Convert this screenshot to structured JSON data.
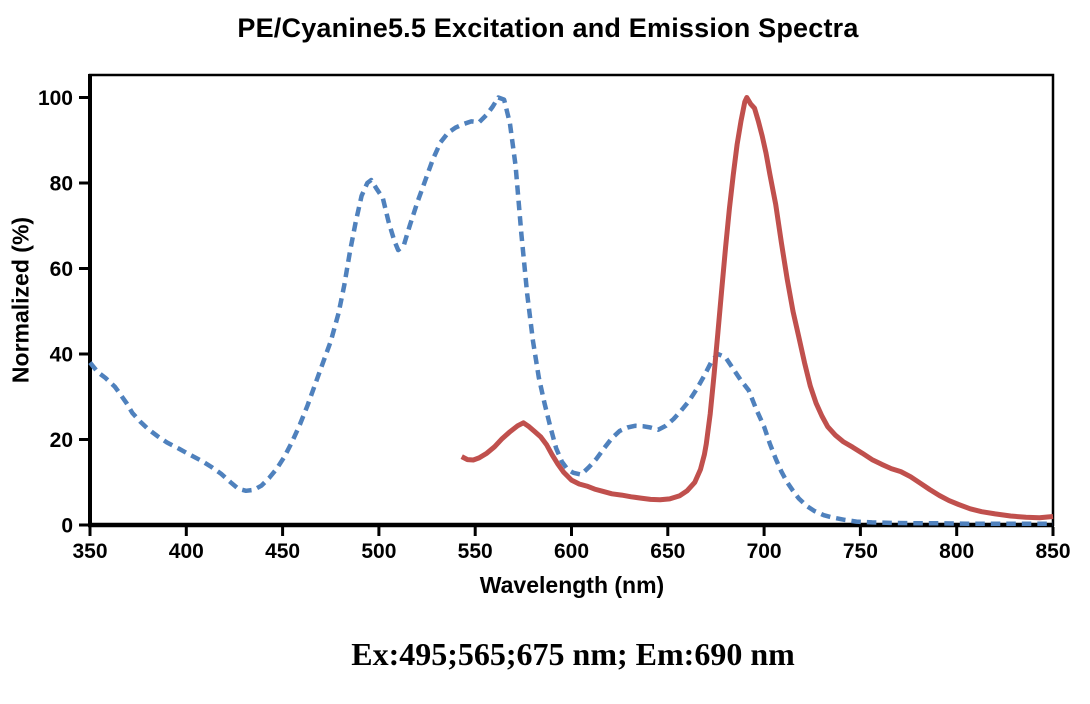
{
  "title": "PE/Cyanine5.5 Excitation and Emission Spectra",
  "annotation": "Ex:495;565;675 nm; Em:690 nm",
  "colors": {
    "excitation": "#4f81bd",
    "emission": "#c0504d",
    "axis": "#000000",
    "background": "#ffffff"
  },
  "chart_data": {
    "type": "line",
    "title": "PE/Cyanine5.5 Excitation and Emission Spectra",
    "xlabel": "Wavelength (nm)",
    "ylabel": "Normalized (%)",
    "xlim": [
      350,
      850
    ],
    "ylim": [
      0,
      100
    ],
    "x_ticks": [
      350,
      400,
      450,
      500,
      550,
      600,
      650,
      700,
      750,
      800,
      850
    ],
    "y_ticks": [
      0,
      20,
      40,
      60,
      80,
      100
    ],
    "grid": false,
    "legend_position": "none",
    "plot_border": true,
    "series": [
      {
        "name": "Excitation",
        "line_style": "dashed",
        "color": "#4f81bd",
        "points": [
          [
            350,
            38
          ],
          [
            354,
            35.8
          ],
          [
            358,
            34.4
          ],
          [
            363,
            32.3
          ],
          [
            366,
            30.4
          ],
          [
            369,
            28.5
          ],
          [
            372,
            26.2
          ],
          [
            376,
            24.2
          ],
          [
            380,
            22.5
          ],
          [
            385,
            20.8
          ],
          [
            390,
            19.3
          ],
          [
            396,
            17.9
          ],
          [
            402,
            16.4
          ],
          [
            408,
            15.0
          ],
          [
            413,
            13.6
          ],
          [
            418,
            12.0
          ],
          [
            423,
            10.0
          ],
          [
            427,
            8.5
          ],
          [
            431,
            8.0
          ],
          [
            435,
            8.2
          ],
          [
            439,
            9.2
          ],
          [
            443,
            11.0
          ],
          [
            447,
            13.2
          ],
          [
            451,
            16.0
          ],
          [
            455,
            19.5
          ],
          [
            459,
            23.5
          ],
          [
            463,
            28.0
          ],
          [
            467,
            33.0
          ],
          [
            471,
            38.0
          ],
          [
            475,
            43.0
          ],
          [
            479,
            49.5
          ],
          [
            482,
            56.0
          ],
          [
            485,
            64.0
          ],
          [
            488,
            71.0
          ],
          [
            491,
            77.0
          ],
          [
            494,
            80.0
          ],
          [
            496,
            80.7
          ],
          [
            499,
            78.5
          ],
          [
            502,
            76.5
          ],
          [
            505,
            71.0
          ],
          [
            508,
            66.5
          ],
          [
            510,
            64.3
          ],
          [
            513,
            65.5
          ],
          [
            516,
            70.0
          ],
          [
            520,
            75.5
          ],
          [
            524,
            80.5
          ],
          [
            528,
            85.5
          ],
          [
            532,
            89.5
          ],
          [
            536,
            91.8
          ],
          [
            540,
            93.0
          ],
          [
            544,
            93.8
          ],
          [
            548,
            94.4
          ],
          [
            552,
            94.2
          ],
          [
            556,
            96.0
          ],
          [
            559,
            97.8
          ],
          [
            562,
            100
          ],
          [
            565,
            99.5
          ],
          [
            568,
            94.0
          ],
          [
            571,
            84.0
          ],
          [
            574,
            68.0
          ],
          [
            577,
            54.0
          ],
          [
            580,
            43.0
          ],
          [
            583,
            34.5
          ],
          [
            586,
            28.5
          ],
          [
            589,
            23.0
          ],
          [
            592,
            18.0
          ],
          [
            595,
            14.8
          ],
          [
            598,
            13.0
          ],
          [
            601,
            12.2
          ],
          [
            605,
            11.8
          ],
          [
            609,
            13.5
          ],
          [
            613,
            15.5
          ],
          [
            617,
            18.0
          ],
          [
            621,
            20.3
          ],
          [
            625,
            22.0
          ],
          [
            629,
            22.8
          ],
          [
            633,
            23.2
          ],
          [
            637,
            23.1
          ],
          [
            641,
            22.8
          ],
          [
            645,
            22.3
          ],
          [
            649,
            23.2
          ],
          [
            653,
            24.8
          ],
          [
            657,
            26.8
          ],
          [
            661,
            29.0
          ],
          [
            665,
            31.8
          ],
          [
            669,
            35.0
          ],
          [
            673,
            38.5
          ],
          [
            676,
            40.0
          ],
          [
            680,
            39.2
          ],
          [
            684,
            36.5
          ],
          [
            688,
            33.8
          ],
          [
            692,
            31.5
          ],
          [
            696,
            27.0
          ],
          [
            700,
            23.0
          ],
          [
            703,
            19.0
          ],
          [
            706,
            15.5
          ],
          [
            709,
            12.5
          ],
          [
            712,
            10.0
          ],
          [
            715,
            8.0
          ],
          [
            718,
            6.2
          ],
          [
            722,
            4.5
          ],
          [
            726,
            3.3
          ],
          [
            731,
            2.3
          ],
          [
            736,
            1.7
          ],
          [
            742,
            1.2
          ],
          [
            748,
            0.8
          ],
          [
            756,
            0.6
          ],
          [
            766,
            0.5
          ],
          [
            778,
            0.4
          ],
          [
            792,
            0.4
          ],
          [
            806,
            0.3
          ],
          [
            820,
            0.3
          ],
          [
            835,
            0.3
          ],
          [
            850,
            0.3
          ]
        ]
      },
      {
        "name": "Emission",
        "line_style": "solid",
        "color": "#c0504d",
        "points": [
          [
            543,
            16.0
          ],
          [
            546,
            15.3
          ],
          [
            549,
            15.2
          ],
          [
            552,
            15.7
          ],
          [
            556,
            16.8
          ],
          [
            560,
            18.3
          ],
          [
            564,
            20.2
          ],
          [
            568,
            21.8
          ],
          [
            572,
            23.2
          ],
          [
            575,
            23.9
          ],
          [
            578,
            23.0
          ],
          [
            581,
            21.8
          ],
          [
            584,
            20.6
          ],
          [
            587,
            18.8
          ],
          [
            590,
            16.4
          ],
          [
            593,
            14.2
          ],
          [
            596,
            12.3
          ],
          [
            600,
            10.5
          ],
          [
            604,
            9.6
          ],
          [
            608,
            9.1
          ],
          [
            612,
            8.4
          ],
          [
            616,
            7.9
          ],
          [
            621,
            7.3
          ],
          [
            626,
            7.0
          ],
          [
            631,
            6.6
          ],
          [
            636,
            6.3
          ],
          [
            641,
            6.0
          ],
          [
            646,
            5.9
          ],
          [
            651,
            6.1
          ],
          [
            656,
            6.8
          ],
          [
            660,
            8.0
          ],
          [
            664,
            10.0
          ],
          [
            667,
            13.0
          ],
          [
            669,
            16.5
          ],
          [
            670,
            19.0
          ],
          [
            672,
            26.0
          ],
          [
            674,
            35.0
          ],
          [
            676,
            45.0
          ],
          [
            678,
            55.0
          ],
          [
            680,
            65.0
          ],
          [
            682,
            74.0
          ],
          [
            684,
            82.0
          ],
          [
            686,
            89.0
          ],
          [
            688,
            94.5
          ],
          [
            690,
            99.0
          ],
          [
            691,
            100
          ],
          [
            693,
            98.5
          ],
          [
            695,
            97.5
          ],
          [
            697,
            94.5
          ],
          [
            699,
            91.0
          ],
          [
            701,
            87.0
          ],
          [
            703,
            82.0
          ],
          [
            706,
            75.0
          ],
          [
            709,
            66.0
          ],
          [
            712,
            57.5
          ],
          [
            715,
            50.0
          ],
          [
            718,
            44.0
          ],
          [
            721,
            38.0
          ],
          [
            724,
            32.5
          ],
          [
            727,
            28.5
          ],
          [
            730,
            25.5
          ],
          [
            733,
            23.0
          ],
          [
            737,
            21.0
          ],
          [
            741,
            19.5
          ],
          [
            746,
            18.2
          ],
          [
            751,
            16.8
          ],
          [
            756,
            15.3
          ],
          [
            761,
            14.2
          ],
          [
            766,
            13.2
          ],
          [
            771,
            12.5
          ],
          [
            776,
            11.3
          ],
          [
            781,
            9.8
          ],
          [
            786,
            8.3
          ],
          [
            791,
            6.9
          ],
          [
            796,
            5.7
          ],
          [
            801,
            4.8
          ],
          [
            807,
            3.8
          ],
          [
            813,
            3.1
          ],
          [
            820,
            2.6
          ],
          [
            828,
            2.1
          ],
          [
            836,
            1.8
          ],
          [
            843,
            1.7
          ],
          [
            850,
            2.0
          ]
        ]
      }
    ]
  }
}
